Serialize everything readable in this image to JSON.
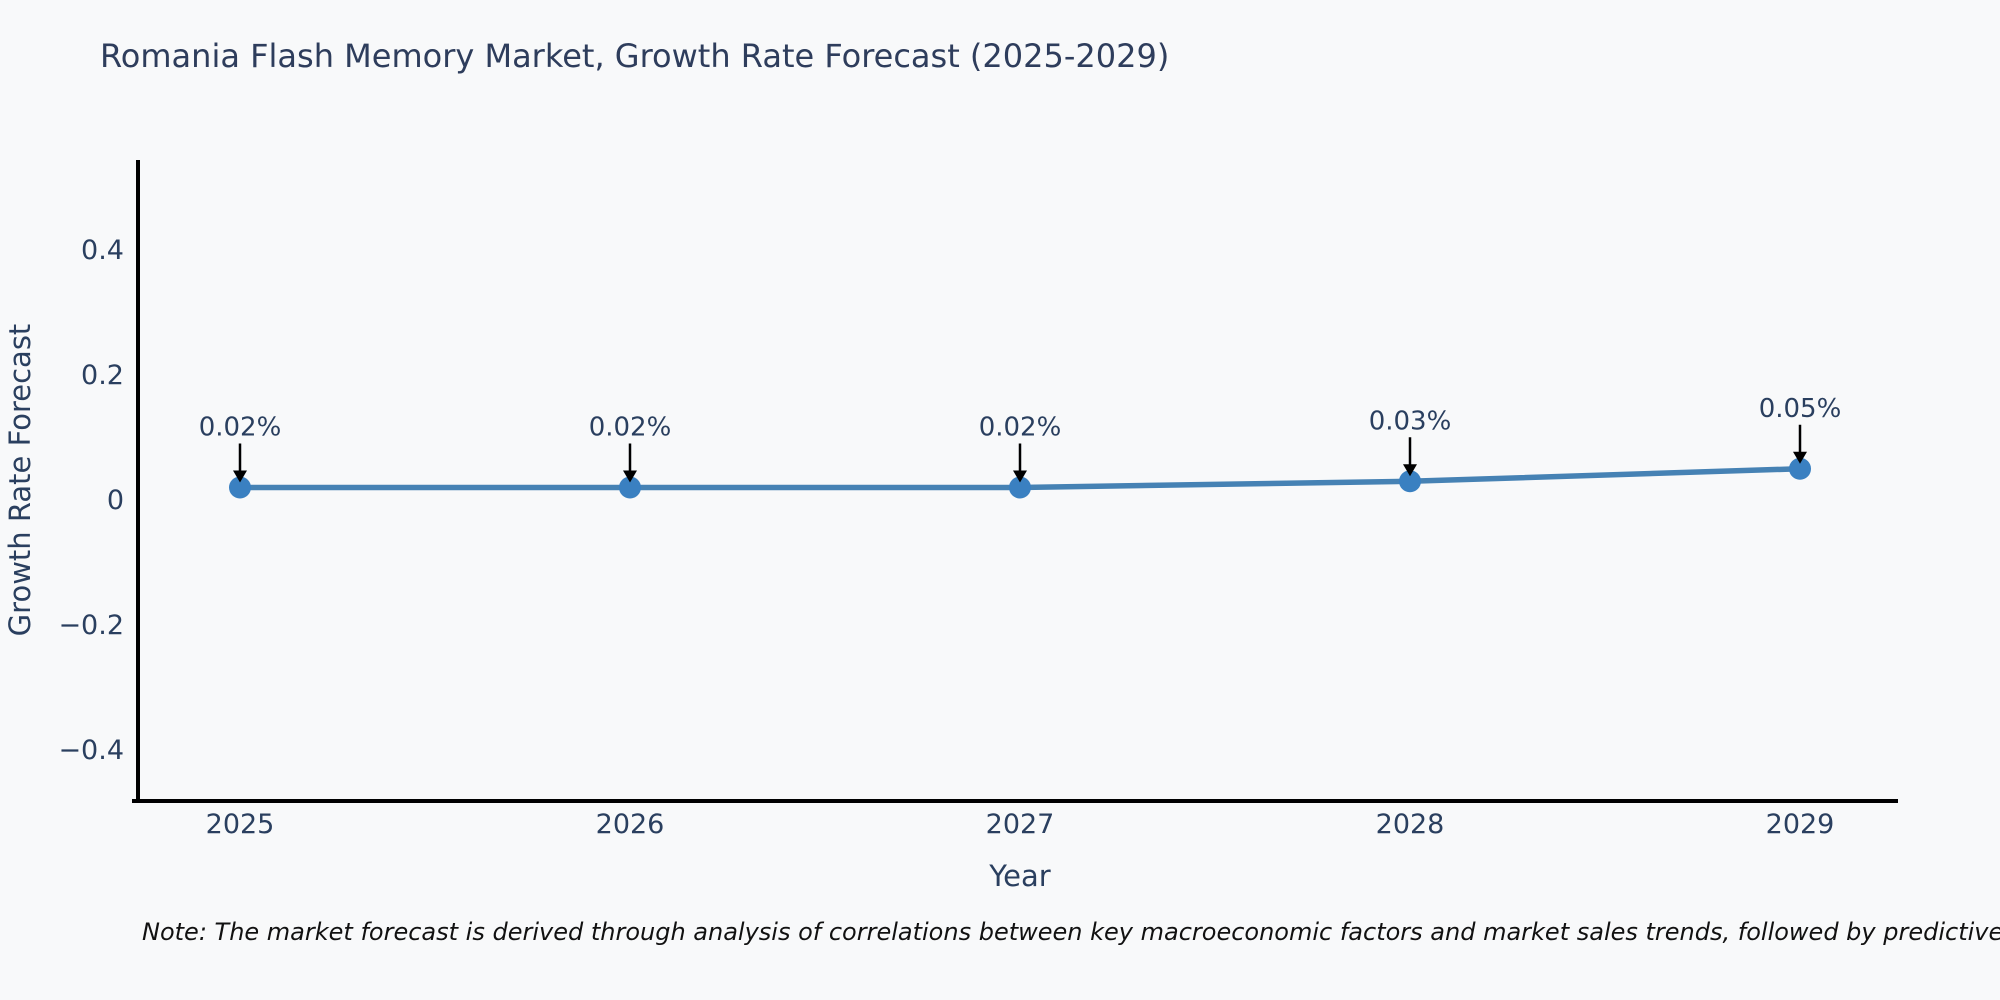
{
  "page": {
    "background": "#f8f9fa"
  },
  "chart_data": {
    "type": "line",
    "title": "Romania Flash Memory Market, Growth Rate Forecast (2025-2029)",
    "xlabel": "Year",
    "ylabel": "Growth Rate Forecast",
    "categories": [
      "2025",
      "2026",
      "2027",
      "2028",
      "2029"
    ],
    "series": [
      {
        "name": "Growth Rate Forecast",
        "values": [
          0.02,
          0.02,
          0.02,
          0.03,
          0.05
        ]
      }
    ],
    "point_labels": [
      "0.02%",
      "0.02%",
      "0.02%",
      "0.03%",
      "0.05%"
    ],
    "yticks": {
      "values": [
        0.4,
        0.2,
        0,
        -0.2,
        -0.4
      ],
      "labels": [
        "0.4",
        "0.2",
        "0",
        "−0.2",
        "−0.4"
      ]
    },
    "ylim": [
      -0.48,
      0.55
    ],
    "grid": false,
    "legend_position": "none",
    "annotation_style": "black-arrow-down-to-point",
    "colors": {
      "line": "#4682b4",
      "marker": "#3a80c1",
      "axis": "#000000",
      "text": "#2a3f5f",
      "annotation_text": "#2a3f5f",
      "annotation_arrow": "#000000"
    }
  },
  "note": {
    "text": "Note: The market forecast is derived through analysis of correlations between key macroeconomic factors and market sales trends, followed by predictive modeling to project future sa"
  }
}
